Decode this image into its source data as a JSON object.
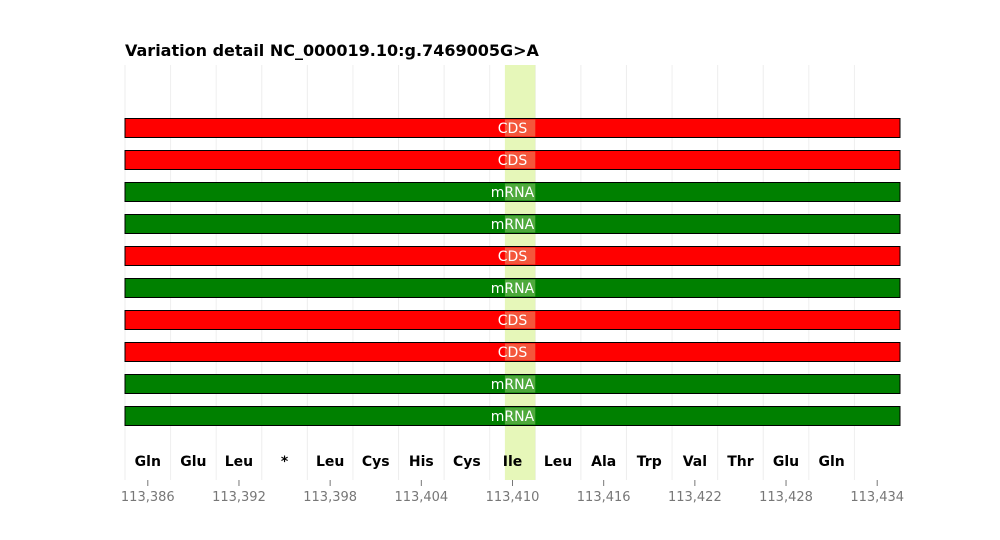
{
  "chart_data": {
    "type": "track",
    "title": "Variation detail NC_000019.10:g.7469005G>A",
    "xlim": [
      113384.5,
      113435.5
    ],
    "xticks": [
      113386,
      113392,
      113398,
      113404,
      113410,
      113416,
      113422,
      113428,
      113434
    ],
    "xtick_labels": [
      "113,386",
      "113,392",
      "113,398",
      "113,404",
      "113,410",
      "113,416",
      "113,422",
      "113,428",
      "113,434"
    ],
    "highlight": {
      "start": 113409.5,
      "end": 113411.5,
      "color": "#e0f5a8"
    },
    "tracks": [
      {
        "label": "CDS",
        "color": "#ff0000"
      },
      {
        "label": "CDS",
        "color": "#ff0000"
      },
      {
        "label": "mRNA",
        "color": "#008000"
      },
      {
        "label": "mRNA",
        "color": "#008000"
      },
      {
        "label": "CDS",
        "color": "#ff0000"
      },
      {
        "label": "mRNA",
        "color": "#008000"
      },
      {
        "label": "CDS",
        "color": "#ff0000"
      },
      {
        "label": "CDS",
        "color": "#ff0000"
      },
      {
        "label": "mRNA",
        "color": "#008000"
      },
      {
        "label": "mRNA",
        "color": "#008000"
      }
    ],
    "amino_acids": [
      {
        "label": "Gln",
        "x": 113386
      },
      {
        "label": "Glu",
        "x": 113389
      },
      {
        "label": "Leu",
        "x": 113392
      },
      {
        "label": "*",
        "x": 113395
      },
      {
        "label": "Leu",
        "x": 113398
      },
      {
        "label": "Cys",
        "x": 113401
      },
      {
        "label": "His",
        "x": 113404
      },
      {
        "label": "Cys",
        "x": 113407
      },
      {
        "label": "Ile",
        "x": 113410
      },
      {
        "label": "Leu",
        "x": 113413
      },
      {
        "label": "Ala",
        "x": 113416
      },
      {
        "label": "Trp",
        "x": 113419
      },
      {
        "label": "Val",
        "x": 113422
      },
      {
        "label": "Thr",
        "x": 113425
      },
      {
        "label": "Glu",
        "x": 113428
      },
      {
        "label": "Gln",
        "x": 113431
      }
    ]
  }
}
